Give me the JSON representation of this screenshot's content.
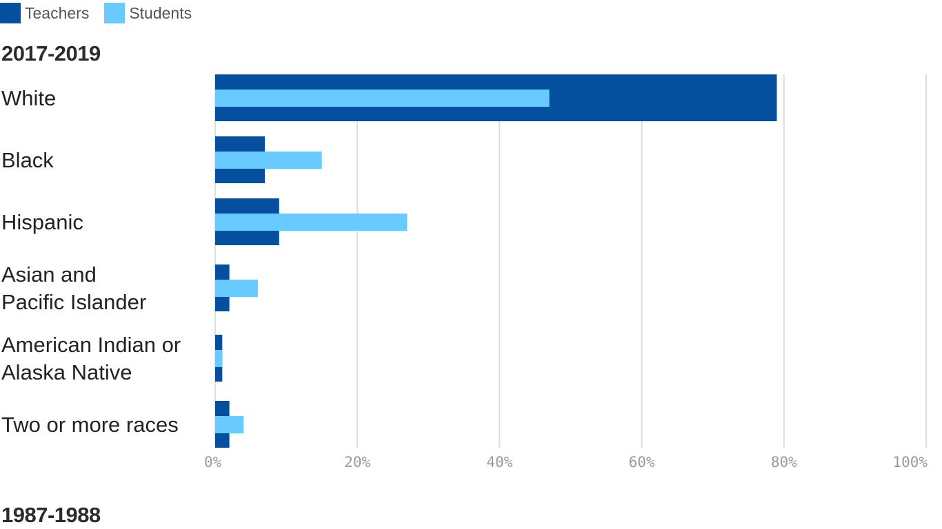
{
  "legend": {
    "teachers": "Teachers",
    "students": "Students"
  },
  "colors": {
    "teachers": "#04509e",
    "students": "#68caff",
    "grid": "#dddddd"
  },
  "chart_data": [
    {
      "type": "bar",
      "orientation": "horizontal",
      "title": "2017-2019",
      "categories": [
        [
          "White"
        ],
        [
          "Black"
        ],
        [
          "Hispanic"
        ],
        [
          "Asian and",
          "Pacific Islander"
        ],
        [
          "American Indian or",
          "Alaska Native"
        ],
        [
          "Two or more races"
        ]
      ],
      "series": [
        {
          "name": "Teachers",
          "values": [
            79,
            7,
            9,
            2,
            1,
            2
          ]
        },
        {
          "name": "Students",
          "values": [
            47,
            15,
            27,
            6,
            1,
            4
          ]
        }
      ],
      "xlim": [
        0,
        100
      ],
      "xticks": [
        "0%",
        "20%",
        "40%",
        "60%",
        "80%",
        "100%"
      ],
      "grid": true,
      "legend_position": "top-left"
    },
    {
      "type": "bar",
      "orientation": "horizontal",
      "title": "1987-1988"
    }
  ]
}
